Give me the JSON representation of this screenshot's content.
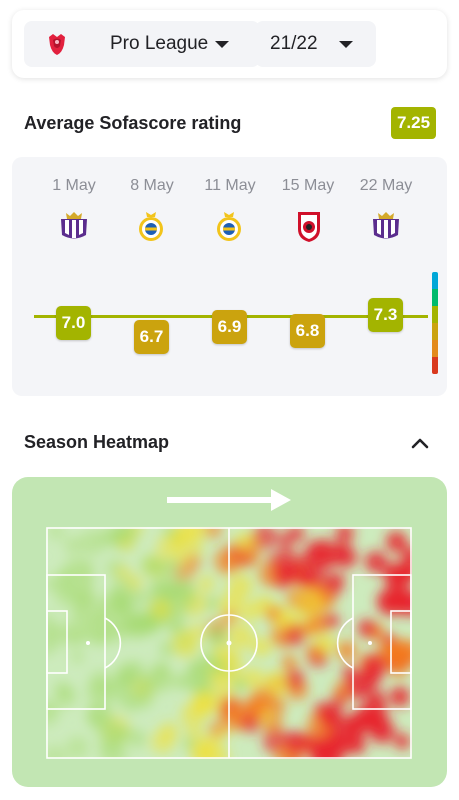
{
  "filters": {
    "league": {
      "label": "Pro League",
      "icon": "pro-league-logo"
    },
    "season": {
      "label": "21/22"
    }
  },
  "rating": {
    "title": "Average Sofascore rating",
    "average": "7.25",
    "average_color": "#a3b400",
    "matches": [
      {
        "date": "1 May",
        "opponent_icon": "anderlecht-crest",
        "rating": "7.0",
        "color": "#a3b400"
      },
      {
        "date": "8 May",
        "opponent_icon": "union-sg-crest",
        "rating": "6.7",
        "color": "#cba30e"
      },
      {
        "date": "11 May",
        "opponent_icon": "union-sg-crest",
        "rating": "6.9",
        "color": "#cba30e"
      },
      {
        "date": "15 May",
        "opponent_icon": "royal-antwerp-crest",
        "rating": "6.8",
        "color": "#cba30e"
      },
      {
        "date": "22 May",
        "opponent_icon": "anderlecht-crest",
        "rating": "7.3",
        "color": "#a3b400"
      }
    ],
    "legend_colors": [
      "#00a7d8",
      "#00bb6c",
      "#a3b400",
      "#cba30e",
      "#e38a1b",
      "#d9391e"
    ]
  },
  "heatmap": {
    "title": "Season Heatmap",
    "direction": "attacking-right",
    "colors": {
      "low": "#a4d96c",
      "mid": "#f0e03a",
      "high": "#f47b1f",
      "max": "#e8222d"
    }
  }
}
